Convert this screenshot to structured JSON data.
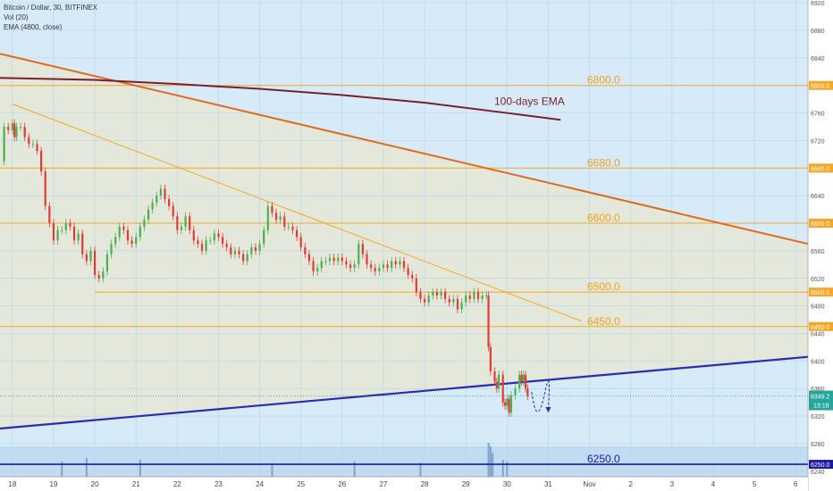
{
  "legend": {
    "symbol_line": "Bitcoin / Dollar, 30, BITFINEX",
    "volume_line": "Vol (20)",
    "ema_line": "EMA (4800, close)"
  },
  "chart_data": {
    "type": "candlestick",
    "symbol": "Bitcoin / Dollar, 30, BITFINEX",
    "x_ticks": [
      "18",
      "19",
      "20",
      "21",
      "22",
      "23",
      "24",
      "25",
      "26",
      "27",
      "28",
      "29",
      "30",
      "31",
      "Nov",
      "2",
      "3",
      "4",
      "5",
      "6"
    ],
    "x_range_days": [
      17.7,
      37.3
    ],
    "y_ticks": [
      6240,
      6280,
      6320,
      6360,
      6400,
      6440,
      6480,
      6520,
      6560,
      6640,
      6720,
      6760,
      6840,
      6880,
      6920
    ],
    "y_range": [
      6232,
      6924
    ],
    "grid": true,
    "horizontal_levels": [
      {
        "value": 6800,
        "label": "6800.0",
        "tag": "6800.0",
        "color": "#f5a623"
      },
      {
        "value": 6680,
        "label": "6680.0",
        "tag": "6680.0",
        "color": "#f5a623"
      },
      {
        "value": 6600,
        "label": "6600.0",
        "tag": "6600.0",
        "color": "#f5a623"
      },
      {
        "value": 6500,
        "label": "6500.0",
        "tag": "6500.0",
        "color": "#f5a623"
      },
      {
        "value": 6450,
        "label": "6450.0",
        "tag": "6450.0",
        "color": "#f5a623"
      },
      {
        "value": 6250,
        "label": "6250.0",
        "tag": "6250.0",
        "color": "#1a1aa0"
      }
    ],
    "support_6500_start_day": 20.0,
    "trendlines": [
      {
        "name": "descending-resistance",
        "color": "#e06a1a",
        "width": 2,
        "points": [
          [
            17.7,
            6846
          ],
          [
            37.3,
            6570
          ]
        ]
      },
      {
        "name": "descending-inner",
        "color": "#f5a623",
        "width": 1,
        "points": [
          [
            18.0,
            6773
          ],
          [
            31.8,
            6458
          ]
        ]
      },
      {
        "name": "ascending-support",
        "color": "#2b2bb0",
        "width": 2.2,
        "points": [
          [
            17.7,
            6302
          ],
          [
            37.3,
            6406
          ]
        ]
      }
    ],
    "ema": {
      "label": "100-days EMA",
      "color": "#7a1f2b",
      "points": [
        [
          17.7,
          6811
        ],
        [
          20.0,
          6808
        ],
        [
          22.0,
          6802
        ],
        [
          24.0,
          6795
        ],
        [
          26.0,
          6786
        ],
        [
          28.0,
          6775
        ],
        [
          30.0,
          6760
        ],
        [
          31.3,
          6750
        ]
      ]
    },
    "current_price": {
      "value": 6349.2,
      "tag": "6349.2",
      "timer": "13:18",
      "color": "#26a69a"
    },
    "projection": {
      "points": [
        [
          30.6,
          6355
        ],
        [
          30.75,
          6325
        ],
        [
          30.9,
          6350
        ],
        [
          31.0,
          6330
        ]
      ],
      "color": "#2b2bb0"
    },
    "candle_close_path": [
      [
        17.7,
        6690
      ],
      [
        17.8,
        6740
      ],
      [
        17.9,
        6735
      ],
      [
        18.0,
        6745
      ],
      [
        18.05,
        6725
      ],
      [
        18.1,
        6740
      ],
      [
        18.2,
        6740
      ],
      [
        18.3,
        6725
      ],
      [
        18.4,
        6715
      ],
      [
        18.5,
        6715
      ],
      [
        18.6,
        6705
      ],
      [
        18.7,
        6675
      ],
      [
        18.8,
        6625
      ],
      [
        18.9,
        6600
      ],
      [
        19.0,
        6575
      ],
      [
        19.1,
        6590
      ],
      [
        19.2,
        6590
      ],
      [
        19.3,
        6600
      ],
      [
        19.4,
        6595
      ],
      [
        19.5,
        6575
      ],
      [
        19.6,
        6585
      ],
      [
        19.7,
        6555
      ],
      [
        19.8,
        6545
      ],
      [
        19.9,
        6560
      ],
      [
        20.0,
        6525
      ],
      [
        20.1,
        6520
      ],
      [
        20.2,
        6530
      ],
      [
        20.3,
        6555
      ],
      [
        20.4,
        6570
      ],
      [
        20.5,
        6580
      ],
      [
        20.6,
        6595
      ],
      [
        20.7,
        6590
      ],
      [
        20.8,
        6575
      ],
      [
        20.9,
        6570
      ],
      [
        21.0,
        6580
      ],
      [
        21.1,
        6595
      ],
      [
        21.2,
        6605
      ],
      [
        21.3,
        6620
      ],
      [
        21.4,
        6630
      ],
      [
        21.5,
        6640
      ],
      [
        21.6,
        6650
      ],
      [
        21.7,
        6635
      ],
      [
        21.8,
        6625
      ],
      [
        21.9,
        6610
      ],
      [
        22.0,
        6590
      ],
      [
        22.1,
        6595
      ],
      [
        22.2,
        6610
      ],
      [
        22.3,
        6590
      ],
      [
        22.4,
        6575
      ],
      [
        22.5,
        6570
      ],
      [
        22.6,
        6560
      ],
      [
        22.7,
        6575
      ],
      [
        22.8,
        6575
      ],
      [
        22.9,
        6585
      ],
      [
        23.0,
        6580
      ],
      [
        23.1,
        6570
      ],
      [
        23.2,
        6565
      ],
      [
        23.3,
        6555
      ],
      [
        23.4,
        6560
      ],
      [
        23.5,
        6555
      ],
      [
        23.6,
        6545
      ],
      [
        23.7,
        6555
      ],
      [
        23.8,
        6565
      ],
      [
        23.9,
        6560
      ],
      [
        24.0,
        6570
      ],
      [
        24.1,
        6590
      ],
      [
        24.2,
        6625
      ],
      [
        24.3,
        6615
      ],
      [
        24.4,
        6605
      ],
      [
        24.5,
        6610
      ],
      [
        24.6,
        6595
      ],
      [
        24.7,
        6595
      ],
      [
        24.8,
        6590
      ],
      [
        24.9,
        6580
      ],
      [
        25.0,
        6565
      ],
      [
        25.1,
        6555
      ],
      [
        25.2,
        6545
      ],
      [
        25.3,
        6530
      ],
      [
        25.4,
        6535
      ],
      [
        25.5,
        6545
      ],
      [
        25.6,
        6545
      ],
      [
        25.7,
        6550
      ],
      [
        25.8,
        6545
      ],
      [
        25.9,
        6550
      ],
      [
        26.0,
        6545
      ],
      [
        26.1,
        6540
      ],
      [
        26.2,
        6535
      ],
      [
        26.3,
        6540
      ],
      [
        26.4,
        6570
      ],
      [
        26.5,
        6555
      ],
      [
        26.6,
        6540
      ],
      [
        26.7,
        6535
      ],
      [
        26.8,
        6530
      ],
      [
        26.9,
        6535
      ],
      [
        27.0,
        6540
      ],
      [
        27.1,
        6535
      ],
      [
        27.2,
        6545
      ],
      [
        27.3,
        6540
      ],
      [
        27.4,
        6545
      ],
      [
        27.5,
        6535
      ],
      [
        27.6,
        6525
      ],
      [
        27.7,
        6520
      ],
      [
        27.8,
        6500
      ],
      [
        27.9,
        6490
      ],
      [
        28.0,
        6485
      ],
      [
        28.1,
        6495
      ],
      [
        28.2,
        6500
      ],
      [
        28.3,
        6495
      ],
      [
        28.4,
        6500
      ],
      [
        28.5,
        6490
      ],
      [
        28.6,
        6485
      ],
      [
        28.7,
        6490
      ],
      [
        28.8,
        6475
      ],
      [
        28.9,
        6485
      ],
      [
        29.0,
        6495
      ],
      [
        29.1,
        6490
      ],
      [
        29.2,
        6500
      ],
      [
        29.3,
        6490
      ],
      [
        29.4,
        6495
      ],
      [
        29.5,
        6495
      ],
      [
        29.55,
        6420
      ],
      [
        29.6,
        6385
      ],
      [
        29.7,
        6370
      ],
      [
        29.75,
        6360
      ],
      [
        29.8,
        6380
      ],
      [
        29.9,
        6340
      ],
      [
        29.95,
        6335
      ],
      [
        30.0,
        6345
      ],
      [
        30.05,
        6325
      ],
      [
        30.1,
        6350
      ],
      [
        30.2,
        6360
      ],
      [
        30.3,
        6380
      ],
      [
        30.35,
        6370
      ],
      [
        30.4,
        6380
      ],
      [
        30.45,
        6360
      ],
      [
        30.5,
        6349
      ]
    ],
    "volume_bars": [
      {
        "day": 19.2,
        "v": 0.45
      },
      {
        "day": 19.8,
        "v": 0.55
      },
      {
        "day": 21.1,
        "v": 0.5
      },
      {
        "day": 24.3,
        "v": 0.4
      },
      {
        "day": 26.3,
        "v": 0.45
      },
      {
        "day": 27.9,
        "v": 0.42
      },
      {
        "day": 29.55,
        "v": 1.0
      },
      {
        "day": 29.6,
        "v": 0.9
      },
      {
        "day": 29.65,
        "v": 0.7
      },
      {
        "day": 29.9,
        "v": 0.5
      },
      {
        "day": 30.0,
        "v": 0.45
      }
    ],
    "volume_ma_label": "Vol (20)"
  }
}
